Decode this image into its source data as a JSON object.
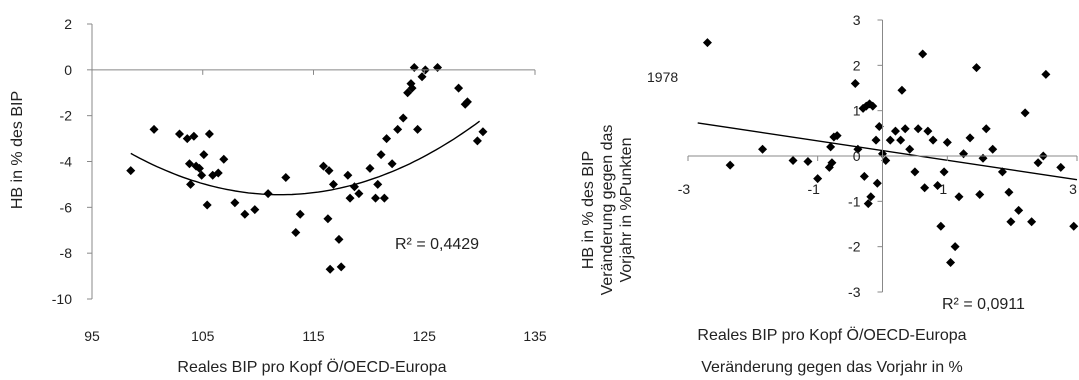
{
  "chart_data": [
    {
      "type": "scatter",
      "title": "",
      "xlabel": "Reales  BIP pro Kopf  Ö/OECD-Europa",
      "ylabel": "HB in % des BIP",
      "xlim": [
        95,
        135
      ],
      "ylim": [
        -10,
        2
      ],
      "xticks": [
        95,
        105,
        115,
        125,
        135
      ],
      "yticks": [
        -10,
        -8,
        -6,
        -4,
        -2,
        0,
        2
      ],
      "grid": false,
      "trendline": {
        "type": "quadratic",
        "x_range": [
          98.5,
          130
        ],
        "coeffs": [
          -5.45,
          112,
          0.0099
        ]
      },
      "r2_label": "R² = 0,4429",
      "points": [
        {
          "x": 98.5,
          "y": -4.4
        },
        {
          "x": 100.6,
          "y": -2.6
        },
        {
          "x": 102.9,
          "y": -2.8
        },
        {
          "x": 103.6,
          "y": -3.0
        },
        {
          "x": 103.8,
          "y": -4.1
        },
        {
          "x": 103.9,
          "y": -5.0
        },
        {
          "x": 104.2,
          "y": -2.9
        },
        {
          "x": 104.4,
          "y": -4.2
        },
        {
          "x": 104.7,
          "y": -4.3
        },
        {
          "x": 104.9,
          "y": -4.6
        },
        {
          "x": 105.1,
          "y": -3.7
        },
        {
          "x": 105.4,
          "y": -5.9
        },
        {
          "x": 105.6,
          "y": -2.8
        },
        {
          "x": 105.9,
          "y": -4.6
        },
        {
          "x": 106.4,
          "y": -4.5
        },
        {
          "x": 106.9,
          "y": -3.9
        },
        {
          "x": 107.9,
          "y": -5.8
        },
        {
          "x": 108.8,
          "y": -6.3
        },
        {
          "x": 109.7,
          "y": -6.1
        },
        {
          "x": 110.9,
          "y": -5.4
        },
        {
          "x": 112.5,
          "y": -4.7
        },
        {
          "x": 113.4,
          "y": -7.1
        },
        {
          "x": 113.8,
          "y": -6.3
        },
        {
          "x": 115.9,
          "y": -4.2
        },
        {
          "x": 116.4,
          "y": -4.4
        },
        {
          "x": 116.3,
          "y": -6.5
        },
        {
          "x": 116.5,
          "y": -8.7
        },
        {
          "x": 116.8,
          "y": -5.0
        },
        {
          "x": 117.3,
          "y": -7.4
        },
        {
          "x": 117.5,
          "y": -8.6
        },
        {
          "x": 118.1,
          "y": -4.6
        },
        {
          "x": 118.3,
          "y": -5.6
        },
        {
          "x": 118.7,
          "y": -5.1
        },
        {
          "x": 119.1,
          "y": -5.4
        },
        {
          "x": 120.1,
          "y": -4.3
        },
        {
          "x": 120.6,
          "y": -5.6
        },
        {
          "x": 120.8,
          "y": -5.0
        },
        {
          "x": 121.1,
          "y": -3.7
        },
        {
          "x": 121.4,
          "y": -5.6
        },
        {
          "x": 121.6,
          "y": -3.0
        },
        {
          "x": 122.1,
          "y": -4.1
        },
        {
          "x": 122.6,
          "y": -2.6
        },
        {
          "x": 123.1,
          "y": -2.1
        },
        {
          "x": 123.5,
          "y": -1.0
        },
        {
          "x": 123.8,
          "y": -0.6
        },
        {
          "x": 123.9,
          "y": -0.8
        },
        {
          "x": 124.1,
          "y": 0.1
        },
        {
          "x": 124.4,
          "y": -2.6
        },
        {
          "x": 124.8,
          "y": -0.3
        },
        {
          "x": 125.1,
          "y": 0.0
        },
        {
          "x": 126.2,
          "y": 0.1
        },
        {
          "x": 128.1,
          "y": -0.8
        },
        {
          "x": 128.7,
          "y": -1.5
        },
        {
          "x": 128.9,
          "y": -1.4
        },
        {
          "x": 129.8,
          "y": -3.1
        },
        {
          "x": 130.3,
          "y": -2.7
        }
      ]
    },
    {
      "type": "scatter",
      "title": "",
      "xlabel": "Reales BIP pro Kopf Ö/OECD-Europa",
      "xlabel2": "Veränderung gegen das Vorjahr in %",
      "ylabel_lines": [
        "HB in % des BIP",
        "Veränderung gegen das",
        "Vorjahr in %Punkten"
      ],
      "xlim": [
        -3,
        3
      ],
      "ylim": [
        -3,
        3
      ],
      "xticks": [
        -3,
        -1,
        1,
        3
      ],
      "yticks": [
        -3,
        -2,
        -1,
        0,
        1,
        2,
        3
      ],
      "grid": false,
      "trendline": {
        "type": "linear",
        "x_range": [
          -2.85,
          3.0
        ],
        "slope": -0.214,
        "intercept": 0.12
      },
      "r2_label": "R² = 0,0911",
      "annotation": {
        "label": "1978",
        "x": -2.83,
        "y": 2.5
      },
      "points": [
        {
          "x": -2.7,
          "y": 2.5
        },
        {
          "x": -2.35,
          "y": -0.2
        },
        {
          "x": -1.85,
          "y": 0.15
        },
        {
          "x": -1.38,
          "y": -0.1
        },
        {
          "x": -1.15,
          "y": -0.12
        },
        {
          "x": -1.0,
          "y": -0.5
        },
        {
          "x": -0.82,
          "y": -0.25
        },
        {
          "x": -0.78,
          "y": -0.15
        },
        {
          "x": -0.75,
          "y": 0.42
        },
        {
          "x": -0.8,
          "y": 0.2
        },
        {
          "x": -0.7,
          "y": 0.45
        },
        {
          "x": -0.42,
          "y": 1.6
        },
        {
          "x": -0.38,
          "y": 0.15
        },
        {
          "x": -0.3,
          "y": 1.05
        },
        {
          "x": -0.25,
          "y": 1.1
        },
        {
          "x": -0.2,
          "y": 1.15
        },
        {
          "x": -0.15,
          "y": 1.1
        },
        {
          "x": -0.1,
          "y": 0.35
        },
        {
          "x": -0.05,
          "y": 0.65
        },
        {
          "x": -0.28,
          "y": -0.45
        },
        {
          "x": -0.22,
          "y": -1.05
        },
        {
          "x": -0.18,
          "y": -0.9
        },
        {
          "x": -0.08,
          "y": -0.6
        },
        {
          "x": 0.0,
          "y": 0.05
        },
        {
          "x": 0.05,
          "y": -0.1
        },
        {
          "x": 0.12,
          "y": 0.35
        },
        {
          "x": 0.2,
          "y": 0.55
        },
        {
          "x": 0.28,
          "y": 0.35
        },
        {
          "x": 0.35,
          "y": 0.6
        },
        {
          "x": 0.42,
          "y": 0.15
        },
        {
          "x": 0.3,
          "y": 1.45
        },
        {
          "x": 0.5,
          "y": -0.35
        },
        {
          "x": 0.55,
          "y": 0.6
        },
        {
          "x": 0.62,
          "y": 2.25
        },
        {
          "x": 0.7,
          "y": 0.55
        },
        {
          "x": 0.78,
          "y": 0.35
        },
        {
          "x": 0.85,
          "y": -0.65
        },
        {
          "x": 0.65,
          "y": -0.7
        },
        {
          "x": 0.95,
          "y": -0.35
        },
        {
          "x": 1.0,
          "y": 0.3
        },
        {
          "x": 0.9,
          "y": -1.55
        },
        {
          "x": 1.05,
          "y": -2.35
        },
        {
          "x": 1.12,
          "y": -2.0
        },
        {
          "x": 1.18,
          "y": -0.9
        },
        {
          "x": 1.25,
          "y": 0.05
        },
        {
          "x": 1.35,
          "y": 0.4
        },
        {
          "x": 1.45,
          "y": 1.95
        },
        {
          "x": 1.5,
          "y": -0.85
        },
        {
          "x": 1.55,
          "y": -0.05
        },
        {
          "x": 1.6,
          "y": 0.6
        },
        {
          "x": 1.7,
          "y": 0.15
        },
        {
          "x": 1.85,
          "y": -0.35
        },
        {
          "x": 1.95,
          "y": -0.8
        },
        {
          "x": 1.98,
          "y": -1.45
        },
        {
          "x": 2.1,
          "y": -1.2
        },
        {
          "x": 2.2,
          "y": 0.95
        },
        {
          "x": 2.3,
          "y": -1.45
        },
        {
          "x": 2.4,
          "y": -0.15
        },
        {
          "x": 2.48,
          "y": 0.0
        },
        {
          "x": 2.52,
          "y": 1.8
        },
        {
          "x": 2.75,
          "y": -0.25
        },
        {
          "x": 2.95,
          "y": -1.55
        }
      ]
    }
  ]
}
